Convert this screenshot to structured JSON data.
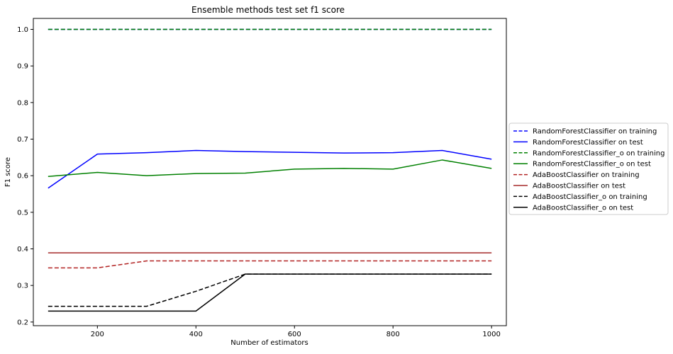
{
  "chart_data": {
    "type": "line",
    "title": "Ensemble methods test set f1 score",
    "xlabel": "Number of estimators",
    "ylabel": "F1 score",
    "xlim": [
      70,
      1030
    ],
    "ylim": [
      0.19,
      1.03
    ],
    "xticks": [
      200,
      400,
      600,
      800,
      1000
    ],
    "yticks": [
      0.2,
      0.3,
      0.4,
      0.5,
      0.6,
      0.7,
      0.8,
      0.9,
      1.0
    ],
    "ytick_labels": [
      "0.2",
      "0.3",
      "0.4",
      "0.5",
      "0.6",
      "0.7",
      "0.8",
      "0.9",
      "1.0"
    ],
    "grid": false,
    "legend_position": "outside-right",
    "x": [
      100,
      200,
      300,
      400,
      500,
      600,
      700,
      800,
      900,
      1000
    ],
    "series": [
      {
        "name": "RandomForestClassifier on training",
        "color": "#0000ff",
        "dash": "dashed",
        "values": [
          1.0,
          1.0,
          1.0,
          1.0,
          1.0,
          1.0,
          1.0,
          1.0,
          1.0,
          1.0
        ]
      },
      {
        "name": "RandomForestClassifier on test",
        "color": "#0000ff",
        "dash": "solid",
        "values": [
          0.566,
          0.659,
          0.663,
          0.669,
          0.666,
          0.664,
          0.662,
          0.663,
          0.669,
          0.645
        ]
      },
      {
        "name": "RandomForestClassifier_o on training",
        "color": "#008000",
        "dash": "dashed",
        "values": [
          1.0,
          1.0,
          1.0,
          1.0,
          1.0,
          1.0,
          1.0,
          1.0,
          1.0,
          1.0
        ]
      },
      {
        "name": "RandomForestClassifier_o on test",
        "color": "#008000",
        "dash": "solid",
        "values": [
          0.598,
          0.609,
          0.6,
          0.606,
          0.607,
          0.618,
          0.62,
          0.618,
          0.643,
          0.62
        ]
      },
      {
        "name": "AdaBoostClassifier on training",
        "color": "#b22222",
        "dash": "dashed",
        "values": [
          0.348,
          0.348,
          0.367,
          0.367,
          0.367,
          0.367,
          0.367,
          0.367,
          0.367,
          0.367
        ]
      },
      {
        "name": "AdaBoostClassifier on test",
        "color": "#a52a2a",
        "dash": "solid",
        "values": [
          0.389,
          0.389,
          0.389,
          0.389,
          0.389,
          0.389,
          0.389,
          0.389,
          0.389,
          0.389
        ]
      },
      {
        "name": "AdaBoostClassifier_o on training",
        "color": "#000000",
        "dash": "dashed",
        "values": [
          0.243,
          0.243,
          0.243,
          0.284,
          0.331,
          0.331,
          0.331,
          0.331,
          0.331,
          0.331
        ]
      },
      {
        "name": "AdaBoostClassifier_o on test",
        "color": "#000000",
        "dash": "solid",
        "values": [
          0.23,
          0.23,
          0.23,
          0.23,
          0.331,
          0.331,
          0.331,
          0.331,
          0.331,
          0.331
        ]
      }
    ]
  }
}
